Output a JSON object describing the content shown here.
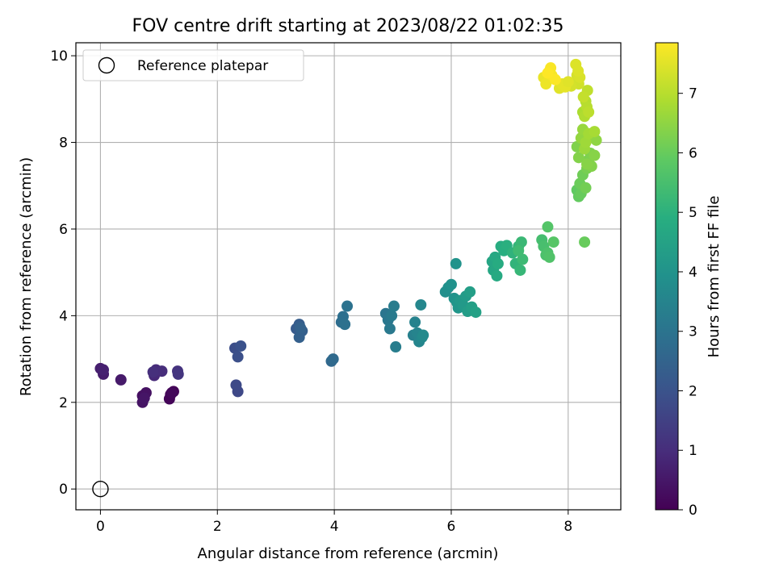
{
  "chart_data": {
    "type": "scatter",
    "title": "FOV centre drift starting at 2023/08/22 01:02:35",
    "xlabel": "Angular distance from reference (arcmin)",
    "ylabel": "Rotation from reference (arcmin)",
    "xlim": [
      -0.42,
      8.9
    ],
    "ylim": [
      -0.48,
      10.3
    ],
    "xticks": [
      "0",
      "2",
      "4",
      "6",
      "8"
    ],
    "yticks": [
      "0",
      "2",
      "4",
      "6",
      "8",
      "10"
    ],
    "grid": true,
    "legend": {
      "location": "top-left",
      "entries": [
        "Reference platepar"
      ]
    },
    "reference_point": {
      "x": 0,
      "y": 0,
      "label": "Reference platepar"
    },
    "colorbar": {
      "label": "Hours from first FF file",
      "range": [
        0,
        7.85
      ],
      "ticks": [
        "0",
        "1",
        "2",
        "3",
        "4",
        "5",
        "6",
        "7"
      ],
      "colormap": "viridis"
    },
    "points": [
      [
        1.2,
        2.18,
        0.0
      ],
      [
        1.25,
        2.25,
        0.05
      ],
      [
        1.18,
        2.08,
        0.1
      ],
      [
        1.22,
        2.22,
        0.15
      ],
      [
        0.72,
        2.15,
        0.3
      ],
      [
        0.78,
        2.22,
        0.35
      ],
      [
        0.72,
        2.0,
        0.4
      ],
      [
        0.75,
        2.1,
        0.45
      ],
      [
        0.35,
        2.52,
        0.55
      ],
      [
        0.05,
        2.65,
        0.6
      ],
      [
        0.0,
        2.78,
        0.65
      ],
      [
        0.05,
        2.75,
        0.7
      ],
      [
        0.92,
        2.62,
        0.9
      ],
      [
        0.95,
        2.75,
        0.95
      ],
      [
        1.05,
        2.72,
        1.0
      ],
      [
        0.9,
        2.7,
        1.05
      ],
      [
        1.32,
        2.72,
        1.15
      ],
      [
        1.33,
        2.65,
        1.2
      ],
      [
        2.35,
        2.25,
        1.7
      ],
      [
        2.32,
        2.4,
        1.75
      ],
      [
        2.3,
        3.25,
        1.85
      ],
      [
        2.35,
        3.05,
        1.9
      ],
      [
        2.4,
        3.3,
        1.95
      ],
      [
        3.35,
        3.7,
        2.25
      ],
      [
        3.4,
        3.8,
        2.3
      ],
      [
        3.45,
        3.65,
        2.35
      ],
      [
        3.4,
        3.5,
        2.4
      ],
      [
        3.42,
        3.72,
        2.45
      ],
      [
        3.95,
        2.95,
        2.65
      ],
      [
        3.98,
        3.0,
        2.7
      ],
      [
        4.12,
        3.85,
        2.8
      ],
      [
        4.15,
        3.98,
        2.85
      ],
      [
        4.18,
        3.8,
        2.9
      ],
      [
        4.22,
        4.22,
        2.95
      ],
      [
        4.88,
        4.05,
        3.05
      ],
      [
        4.92,
        3.9,
        3.1
      ],
      [
        4.95,
        3.7,
        3.15
      ],
      [
        4.98,
        4.0,
        3.2
      ],
      [
        5.02,
        4.22,
        3.25
      ],
      [
        5.05,
        3.28,
        3.3
      ],
      [
        5.35,
        3.55,
        3.4
      ],
      [
        5.38,
        3.85,
        3.45
      ],
      [
        5.42,
        3.6,
        3.5
      ],
      [
        5.45,
        3.4,
        3.55
      ],
      [
        5.48,
        4.25,
        3.6
      ],
      [
        5.5,
        3.5,
        3.65
      ],
      [
        5.52,
        3.55,
        3.7
      ],
      [
        5.9,
        4.55,
        3.85
      ],
      [
        5.95,
        4.65,
        3.9
      ],
      [
        6.0,
        4.72,
        3.95
      ],
      [
        6.05,
        4.4,
        4.0
      ],
      [
        6.08,
        5.2,
        4.0
      ],
      [
        6.1,
        4.3,
        4.05
      ],
      [
        6.12,
        4.18,
        4.1
      ],
      [
        6.15,
        4.35,
        4.15
      ],
      [
        6.2,
        4.25,
        4.2
      ],
      [
        6.25,
        4.45,
        4.25
      ],
      [
        6.28,
        4.1,
        4.3
      ],
      [
        6.32,
        4.55,
        4.35
      ],
      [
        6.35,
        4.2,
        4.4
      ],
      [
        6.42,
        4.08,
        4.45
      ],
      [
        6.7,
        5.25,
        4.6
      ],
      [
        6.72,
        5.05,
        4.65
      ],
      [
        6.75,
        5.35,
        4.7
      ],
      [
        6.78,
        4.92,
        4.75
      ],
      [
        6.8,
        5.2,
        4.8
      ],
      [
        6.85,
        5.6,
        4.85
      ],
      [
        6.9,
        5.5,
        4.9
      ],
      [
        6.95,
        5.62,
        4.95
      ],
      [
        7.05,
        5.45,
        5.05
      ],
      [
        7.1,
        5.2,
        5.1
      ],
      [
        7.15,
        5.6,
        5.15
      ],
      [
        7.18,
        5.05,
        5.2
      ],
      [
        7.2,
        5.7,
        5.25
      ],
      [
        7.22,
        5.3,
        5.3
      ],
      [
        7.15,
        5.5,
        5.35
      ],
      [
        7.55,
        5.75,
        5.45
      ],
      [
        7.58,
        5.6,
        5.5
      ],
      [
        7.62,
        5.4,
        5.55
      ],
      [
        7.65,
        5.45,
        5.6
      ],
      [
        7.68,
        5.35,
        5.65
      ],
      [
        7.65,
        6.05,
        5.7
      ],
      [
        7.75,
        5.7,
        5.75
      ],
      [
        8.15,
        6.9,
        5.9
      ],
      [
        8.18,
        6.75,
        5.95
      ],
      [
        8.22,
        6.82,
        6.0
      ],
      [
        8.2,
        7.05,
        6.05
      ],
      [
        8.25,
        7.25,
        6.1
      ],
      [
        8.28,
        5.7,
        6.0
      ],
      [
        8.3,
        6.95,
        6.15
      ],
      [
        8.32,
        7.4,
        6.2
      ],
      [
        8.35,
        7.6,
        6.25
      ],
      [
        8.38,
        7.75,
        6.3
      ],
      [
        8.4,
        7.45,
        6.35
      ],
      [
        8.45,
        7.7,
        6.4
      ],
      [
        8.42,
        8.15,
        6.45
      ],
      [
        8.48,
        8.05,
        6.5
      ],
      [
        8.15,
        7.9,
        6.3
      ],
      [
        8.18,
        7.65,
        6.35
      ],
      [
        8.22,
        8.1,
        6.55
      ],
      [
        8.25,
        8.3,
        6.6
      ],
      [
        8.28,
        7.85,
        6.65
      ],
      [
        8.3,
        8.0,
        6.7
      ],
      [
        8.32,
        7.5,
        6.4
      ],
      [
        8.35,
        8.2,
        6.75
      ],
      [
        8.45,
        8.25,
        6.8
      ],
      [
        8.25,
        8.7,
        6.85
      ],
      [
        8.28,
        8.6,
        6.9
      ],
      [
        8.3,
        8.95,
        6.95
      ],
      [
        8.32,
        8.82,
        7.0
      ],
      [
        8.35,
        8.7,
        7.05
      ],
      [
        8.33,
        9.2,
        7.1
      ],
      [
        8.26,
        9.05,
        7.15
      ],
      [
        8.12,
        9.4,
        7.25
      ],
      [
        8.18,
        9.35,
        7.3
      ],
      [
        8.15,
        9.55,
        7.35
      ],
      [
        8.2,
        9.5,
        7.4
      ],
      [
        8.13,
        9.8,
        7.45
      ],
      [
        8.17,
        9.65,
        7.45
      ],
      [
        8.05,
        9.3,
        7.35
      ],
      [
        7.85,
        9.25,
        7.5
      ],
      [
        7.9,
        9.35,
        7.55
      ],
      [
        7.95,
        9.28,
        7.55
      ],
      [
        8.0,
        9.4,
        7.5
      ],
      [
        7.58,
        9.5,
        7.6
      ],
      [
        7.62,
        9.35,
        7.65
      ],
      [
        7.68,
        9.65,
        7.7
      ],
      [
        7.72,
        9.55,
        7.75
      ],
      [
        7.7,
        9.72,
        7.8
      ],
      [
        7.78,
        9.45,
        7.82
      ],
      [
        7.65,
        9.6,
        7.85
      ]
    ]
  }
}
